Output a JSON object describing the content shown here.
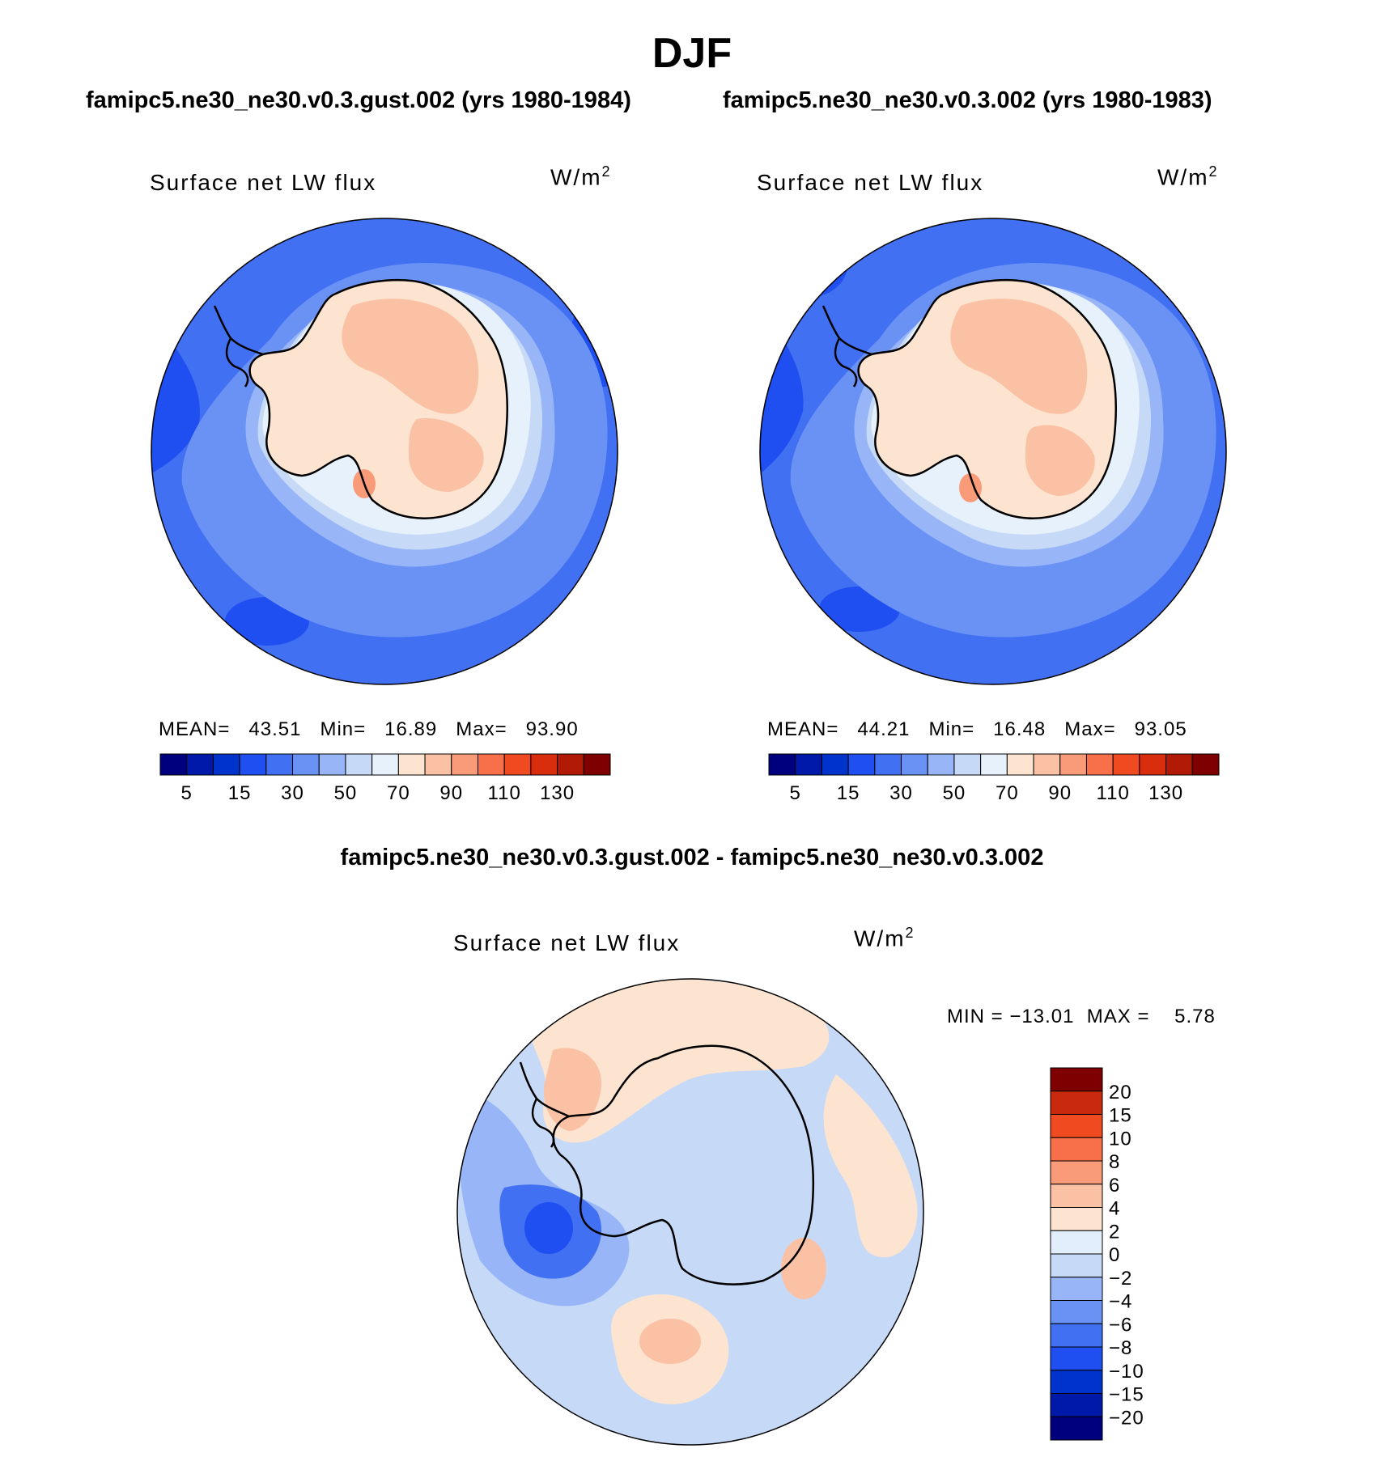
{
  "title": "DJF",
  "panels": [
    {
      "case": "famipc5.ne30_ne30.v0.3.gust.002 (yrs 1980-1984)",
      "variable": "Surface net LW flux",
      "units_base": "W/m",
      "units_exp": "2",
      "mean_label": "MEAN=",
      "mean": "43.51",
      "min_label": "Min=",
      "min": "16.89",
      "max_label": "Max=",
      "max": "93.90"
    },
    {
      "case": "famipc5.ne30_ne30.v0.3.002 (yrs 1980-1983)",
      "variable": "Surface net LW flux",
      "units_base": "W/m",
      "units_exp": "2",
      "mean_label": "MEAN=",
      "mean": "44.21",
      "min_label": "Min=",
      "min": "16.48",
      "max_label": "Max=",
      "max": "93.05"
    }
  ],
  "difference": {
    "title": "famipc5.ne30_ne30.v0.3.gust.002 - famipc5.ne30_ne30.v0.3.002",
    "variable": "Surface net LW flux",
    "units_base": "W/m",
    "units_exp": "2",
    "min_label": "MIN =",
    "min": "−13.01",
    "max_label": "MAX =",
    "max": "5.78"
  },
  "legend_abs": {
    "colors": [
      "#00007f",
      "#0019a8",
      "#0033cc",
      "#1f4ff0",
      "#4170f2",
      "#6a92f5",
      "#98b5f8",
      "#c6daf8",
      "#e7f1fb",
      "#fde4d1",
      "#fbc1a5",
      "#f99a78",
      "#f77049",
      "#f04a21",
      "#d92e0e",
      "#b01a06",
      "#7f0000"
    ],
    "ticks": [
      "5",
      "15",
      "30",
      "50",
      "70",
      "90",
      "110",
      "130"
    ]
  },
  "legend_diff": {
    "colors": [
      "#00007f",
      "#0019a8",
      "#0033cc",
      "#1f4ff0",
      "#4170f2",
      "#6a92f5",
      "#98b5f8",
      "#c6daf8",
      "#e2eefb",
      "#fde4d1",
      "#fbc1a5",
      "#f99a78",
      "#f77049",
      "#f04a21",
      "#c92a0e",
      "#7f0000"
    ],
    "ticks": [
      "20",
      "15",
      "10",
      "8",
      "6",
      "4",
      "2",
      "0",
      "−2",
      "−4",
      "−6",
      "−8",
      "−10",
      "−15",
      "−20"
    ]
  }
}
